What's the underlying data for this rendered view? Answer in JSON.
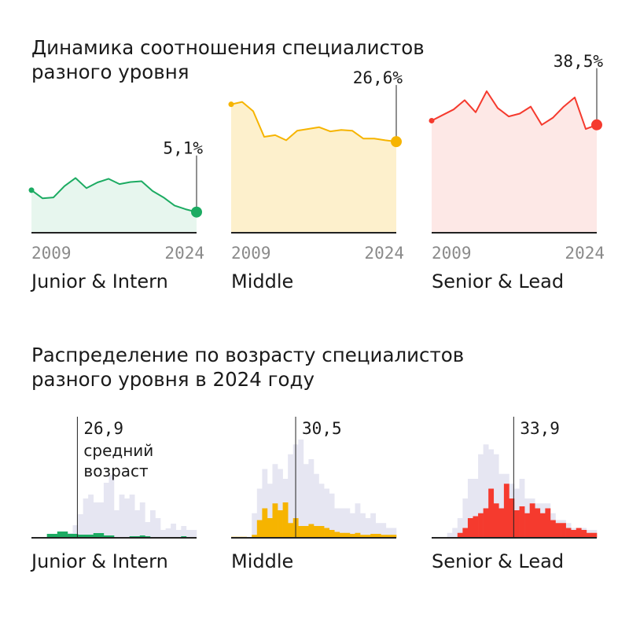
{
  "headings": {
    "trend": "Динамика соотношения специалистов\nразного уровня",
    "age": "Распределение по возрасту специалистов\nразного уровня в 2024 году"
  },
  "colors": {
    "junior": "#1cab62",
    "middle": "#f6b400",
    "senior": "#f53a2e",
    "axis": "#222222",
    "bg_bars": "#e6e6f2",
    "year_text": "#8a8a8a"
  },
  "chart_data": [
    {
      "type": "area",
      "name": "Junior & Intern",
      "color": "#1cab62",
      "fill": "#e7f6ee",
      "x": [
        "2009",
        "2010",
        "2011",
        "2012",
        "2013",
        "2014",
        "2015",
        "2016",
        "2017",
        "2018",
        "2019",
        "2020",
        "2021",
        "2022",
        "2023",
        "2024"
      ],
      "values": [
        10.5,
        8.5,
        8.7,
        11.5,
        13.5,
        11.0,
        12.4,
        13.3,
        12.0,
        12.5,
        12.7,
        10.3,
        8.7,
        6.7,
        5.8,
        5.1
      ],
      "ylim": [
        0,
        38
      ],
      "xlabel_start": "2009",
      "xlabel_end": "2024",
      "end_label": "5,1%"
    },
    {
      "type": "area",
      "name": "Middle",
      "color": "#f6b400",
      "fill": "#fdf0cc",
      "x": [
        "2009",
        "2010",
        "2011",
        "2012",
        "2013",
        "2014",
        "2015",
        "2016",
        "2017",
        "2018",
        "2019",
        "2020",
        "2021",
        "2022",
        "2023",
        "2024"
      ],
      "values": [
        37.5,
        38.2,
        35.5,
        28.0,
        28.5,
        27.0,
        29.8,
        30.3,
        30.8,
        29.6,
        30.0,
        29.8,
        27.5,
        27.5,
        27.0,
        26.6
      ],
      "ylim": [
        0,
        45
      ],
      "xlabel_start": "2009",
      "xlabel_end": "2024",
      "end_label": "26,6%"
    },
    {
      "type": "area",
      "name": "Senior & Lead",
      "color": "#f53a2e",
      "fill": "#fde8e6",
      "x": [
        "2009",
        "2010",
        "2011",
        "2012",
        "2013",
        "2014",
        "2015",
        "2016",
        "2017",
        "2018",
        "2019",
        "2020",
        "2021",
        "2022",
        "2023",
        "2024"
      ],
      "values": [
        40.0,
        42.0,
        44.0,
        47.3,
        43.0,
        50.5,
        44.5,
        41.5,
        42.5,
        45.0,
        38.5,
        41.0,
        45.0,
        48.3,
        37.0,
        38.5
      ],
      "ylim": [
        0,
        55
      ],
      "xlabel_start": "2009",
      "xlabel_end": "2024",
      "end_label": "38,5%"
    },
    {
      "type": "bar",
      "name": "Junior & Intern",
      "color": "#1cab62",
      "ages_from": 18,
      "total": [
        0,
        0,
        0,
        0,
        0,
        0,
        0,
        6,
        16,
        30,
        50,
        55,
        45,
        45,
        70,
        80,
        35,
        55,
        50,
        55,
        35,
        45,
        20,
        35,
        25,
        10,
        12,
        18,
        10,
        15,
        10,
        10
      ],
      "level": [
        1,
        1,
        0,
        5,
        5,
        8,
        8,
        5,
        5,
        4,
        4,
        4,
        6,
        6,
        3,
        3,
        1,
        1,
        1,
        2,
        2,
        3,
        2,
        1,
        0,
        0,
        0,
        1,
        1,
        2,
        1,
        0
      ],
      "ymax": 150,
      "mean": 26.9,
      "mean_label": "26,9",
      "mean_note": "средний\nвозраст"
    },
    {
      "type": "bar",
      "name": "Middle",
      "color": "#f6b400",
      "ages_from": 18,
      "total": [
        0,
        0,
        0,
        0,
        25,
        50,
        70,
        55,
        75,
        70,
        60,
        85,
        95,
        100,
        75,
        80,
        65,
        55,
        50,
        45,
        30,
        30,
        30,
        25,
        35,
        25,
        20,
        25,
        15,
        15,
        10,
        10
      ],
      "level": [
        1,
        1,
        1,
        0,
        3,
        18,
        30,
        20,
        35,
        28,
        36,
        15,
        20,
        12,
        12,
        14,
        12,
        12,
        10,
        8,
        6,
        5,
        5,
        4,
        5,
        3,
        3,
        4,
        4,
        3,
        3,
        3
      ],
      "ymax": 120,
      "mean": 30.5,
      "mean_label": "30,5"
    },
    {
      "type": "bar",
      "name": "Senior & Lead",
      "color": "#f53a2e",
      "ages_from": 18,
      "total": [
        0,
        0,
        0,
        5,
        10,
        20,
        40,
        60,
        60,
        85,
        95,
        90,
        85,
        65,
        65,
        55,
        50,
        60,
        40,
        40,
        35,
        35,
        35,
        25,
        18,
        18,
        15,
        10,
        10,
        10,
        8,
        8
      ],
      "level": [
        0,
        0,
        0,
        0,
        0,
        5,
        10,
        20,
        22,
        25,
        30,
        50,
        35,
        30,
        55,
        40,
        28,
        32,
        25,
        35,
        30,
        25,
        30,
        18,
        15,
        15,
        10,
        8,
        10,
        8,
        5,
        5
      ],
      "ymax": 120,
      "mean": 33.9,
      "mean_label": "33,9"
    }
  ]
}
